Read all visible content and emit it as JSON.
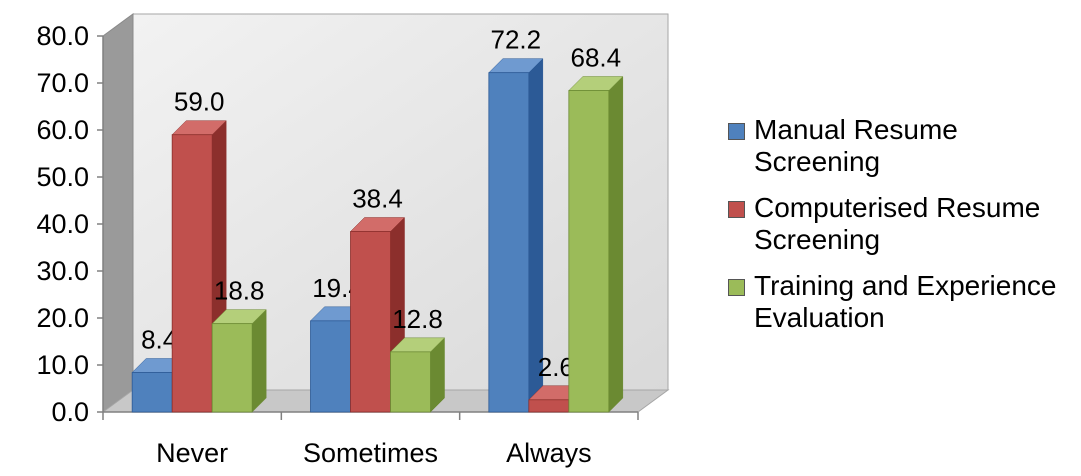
{
  "chart_data": {
    "type": "bar",
    "categories": [
      "Never",
      "Sometimes",
      "Always"
    ],
    "series": [
      {
        "name": "Manual Resume Screening",
        "values": [
          8.4,
          19.4,
          72.2
        ],
        "color": "#4f81bd",
        "side_color": "#2c5a96",
        "top_color": "#6f9ad0"
      },
      {
        "name": "Computerised Resume Screening",
        "values": [
          59.0,
          38.4,
          2.6
        ],
        "color": "#c0504d",
        "side_color": "#8c2f2c",
        "top_color": "#d26c69"
      },
      {
        "name": "Training and Experience Evaluation",
        "values": [
          18.8,
          12.8,
          68.4
        ],
        "color": "#9bbb59",
        "side_color": "#6b8a32",
        "top_color": "#b4cf7a"
      }
    ],
    "data_labels": [
      [
        "8.4",
        "19.4",
        "72.2"
      ],
      [
        "59.0",
        "38.4",
        "2.6"
      ],
      [
        "18.8",
        "12.8",
        "68.4"
      ]
    ],
    "y_ticks": [
      "0.0",
      "10.0",
      "20.0",
      "30.0",
      "40.0",
      "50.0",
      "60.0",
      "70.0",
      "80.0"
    ],
    "ylim": [
      0,
      80
    ],
    "legend_position": "right",
    "grid": false,
    "three_d": true
  },
  "legend": {
    "items": [
      {
        "label": "Manual Resume Screening",
        "color": "#4f81bd"
      },
      {
        "label": "Computerised Resume Screening",
        "color": "#c0504d"
      },
      {
        "label": "Training and Experience Evaluation",
        "color": "#9bbb59"
      }
    ]
  }
}
